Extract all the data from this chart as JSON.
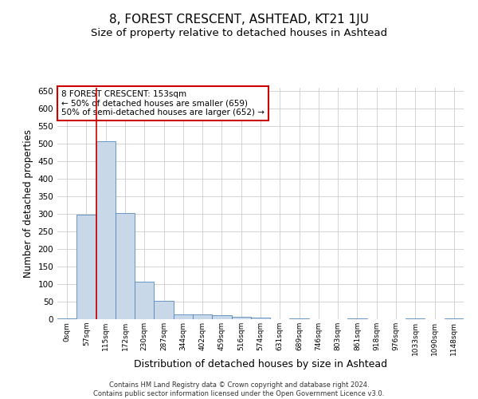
{
  "title": "8, FOREST CRESCENT, ASHTEAD, KT21 1JU",
  "subtitle": "Size of property relative to detached houses in Ashtead",
  "xlabel": "Distribution of detached houses by size in Ashtead",
  "ylabel": "Number of detached properties",
  "footer_line1": "Contains HM Land Registry data © Crown copyright and database right 2024.",
  "footer_line2": "Contains public sector information licensed under the Open Government Licence v3.0.",
  "bin_labels": [
    "0sqm",
    "57sqm",
    "115sqm",
    "172sqm",
    "230sqm",
    "287sqm",
    "344sqm",
    "402sqm",
    "459sqm",
    "516sqm",
    "574sqm",
    "631sqm",
    "689sqm",
    "746sqm",
    "803sqm",
    "861sqm",
    "918sqm",
    "976sqm",
    "1033sqm",
    "1090sqm",
    "1148sqm"
  ],
  "bar_heights": [
    2,
    298,
    507,
    302,
    106,
    53,
    13,
    13,
    11,
    7,
    5,
    0,
    3,
    0,
    0,
    2,
    0,
    0,
    2,
    0,
    2
  ],
  "bar_color": "#c8d8e8",
  "bar_edge_color": "#5588bb",
  "grid_color": "#cccccc",
  "annotation_text": "8 FOREST CRESCENT: 153sqm\n← 50% of detached houses are smaller (659)\n50% of semi-detached houses are larger (652) →",
  "annotation_box_color": "#ffffff",
  "annotation_box_edge_color": "#cc0000",
  "vline_x": 1.5,
  "vline_color": "#cc0000",
  "ylim": [
    0,
    660
  ],
  "yticks": [
    0,
    50,
    100,
    150,
    200,
    250,
    300,
    350,
    400,
    450,
    500,
    550,
    600,
    650
  ],
  "background_color": "#ffffff",
  "title_fontsize": 11,
  "subtitle_fontsize": 9.5,
  "ylabel_fontsize": 8.5,
  "xlabel_fontsize": 9
}
